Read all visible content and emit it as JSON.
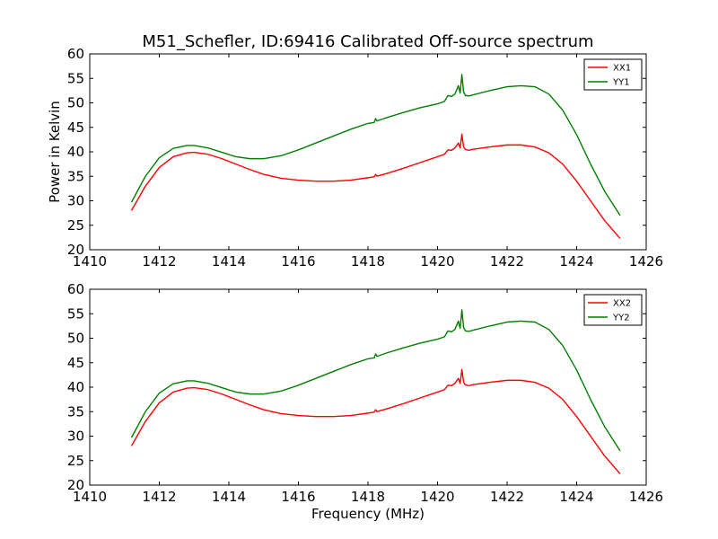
{
  "title": "M51_Schefler, ID:69416 Calibrated Off-source spectrum",
  "chart_data": [
    {
      "type": "line",
      "title": "M51_Schefler, ID:69416 Calibrated Off-source spectrum",
      "xlabel": "",
      "ylabel": "Power in Kelvin",
      "xlim": [
        1410,
        1426
      ],
      "ylim": [
        20,
        60
      ],
      "xticks": [
        "1410",
        "1412",
        "1414",
        "1416",
        "1418",
        "1420",
        "1422",
        "1424",
        "1426"
      ],
      "yticks": [
        "20",
        "25",
        "30",
        "35",
        "40",
        "45",
        "50",
        "55",
        "60"
      ],
      "legend": "top-right",
      "grid": false,
      "series": [
        {
          "name": "XX1",
          "color": "#ff0000",
          "x": [
            1411.2,
            1411.6,
            1412.0,
            1412.4,
            1412.8,
            1413.0,
            1413.4,
            1413.8,
            1414.2,
            1414.6,
            1415.0,
            1415.5,
            1416.0,
            1416.5,
            1417.0,
            1417.5,
            1418.0,
            1418.18,
            1418.22,
            1418.26,
            1418.3,
            1418.5,
            1419.0,
            1419.5,
            1420.0,
            1420.2,
            1420.3,
            1420.4,
            1420.5,
            1420.6,
            1420.65,
            1420.7,
            1420.75,
            1420.8,
            1420.9,
            1421.0,
            1421.5,
            1422.0,
            1422.4,
            1422.8,
            1423.2,
            1423.6,
            1424.0,
            1424.4,
            1424.8,
            1425.25
          ],
          "y": [
            28.0,
            33.0,
            36.8,
            39.0,
            39.8,
            39.9,
            39.5,
            38.6,
            37.5,
            36.4,
            35.4,
            34.6,
            34.2,
            34.0,
            34.0,
            34.2,
            34.7,
            34.9,
            35.4,
            35.0,
            35.1,
            35.5,
            36.6,
            37.8,
            39.0,
            39.5,
            40.4,
            40.3,
            40.8,
            41.8,
            40.8,
            43.6,
            41.0,
            40.5,
            40.3,
            40.5,
            41.0,
            41.4,
            41.4,
            41.0,
            39.8,
            37.5,
            34.0,
            30.0,
            26.0,
            22.3
          ]
        },
        {
          "name": "YY1",
          "color": "#007f00",
          "x": [
            1411.2,
            1411.6,
            1412.0,
            1412.4,
            1412.8,
            1413.0,
            1413.4,
            1413.8,
            1414.2,
            1414.6,
            1415.0,
            1415.5,
            1416.0,
            1416.5,
            1417.0,
            1417.5,
            1418.0,
            1418.18,
            1418.22,
            1418.26,
            1418.3,
            1418.5,
            1419.0,
            1419.5,
            1420.0,
            1420.2,
            1420.3,
            1420.4,
            1420.5,
            1420.6,
            1420.65,
            1420.7,
            1420.75,
            1420.8,
            1420.9,
            1421.0,
            1421.5,
            1422.0,
            1422.4,
            1422.8,
            1423.2,
            1423.6,
            1424.0,
            1424.4,
            1424.8,
            1425.25
          ],
          "y": [
            29.7,
            35.0,
            38.8,
            40.7,
            41.3,
            41.3,
            40.8,
            39.9,
            39.0,
            38.6,
            38.6,
            39.2,
            40.4,
            41.8,
            43.2,
            44.6,
            45.8,
            46.0,
            46.8,
            46.3,
            46.4,
            46.9,
            48.0,
            49.0,
            49.8,
            50.3,
            51.5,
            51.3,
            51.8,
            53.5,
            52.0,
            55.8,
            52.2,
            51.5,
            51.4,
            51.6,
            52.5,
            53.3,
            53.5,
            53.3,
            51.8,
            48.5,
            43.5,
            37.5,
            32.0,
            27.0
          ]
        }
      ]
    },
    {
      "type": "line",
      "title": "",
      "xlabel": "Frequency (MHz)",
      "ylabel": "",
      "xlim": [
        1410,
        1426
      ],
      "ylim": [
        20,
        60
      ],
      "xticks": [
        "1410",
        "1412",
        "1414",
        "1416",
        "1418",
        "1420",
        "1422",
        "1424",
        "1426"
      ],
      "yticks": [
        "20",
        "25",
        "30",
        "35",
        "40",
        "45",
        "50",
        "55",
        "60"
      ],
      "legend": "top-right",
      "grid": false,
      "series": [
        {
          "name": "XX2",
          "color": "#ff0000",
          "x": [
            1411.2,
            1411.6,
            1412.0,
            1412.4,
            1412.8,
            1413.0,
            1413.4,
            1413.8,
            1414.2,
            1414.6,
            1415.0,
            1415.5,
            1416.0,
            1416.5,
            1417.0,
            1417.5,
            1418.0,
            1418.18,
            1418.22,
            1418.26,
            1418.3,
            1418.5,
            1419.0,
            1419.5,
            1420.0,
            1420.2,
            1420.3,
            1420.4,
            1420.5,
            1420.6,
            1420.65,
            1420.7,
            1420.75,
            1420.8,
            1420.9,
            1421.0,
            1421.5,
            1422.0,
            1422.4,
            1422.8,
            1423.2,
            1423.6,
            1424.0,
            1424.4,
            1424.8,
            1425.25
          ],
          "y": [
            28.0,
            33.0,
            36.8,
            39.0,
            39.8,
            39.9,
            39.5,
            38.6,
            37.5,
            36.4,
            35.4,
            34.6,
            34.2,
            34.0,
            34.0,
            34.2,
            34.7,
            34.9,
            35.4,
            35.0,
            35.1,
            35.5,
            36.6,
            37.8,
            39.0,
            39.5,
            40.4,
            40.3,
            40.8,
            41.8,
            40.8,
            43.6,
            41.0,
            40.5,
            40.3,
            40.5,
            41.0,
            41.4,
            41.4,
            41.0,
            39.8,
            37.5,
            34.0,
            30.0,
            26.0,
            22.3
          ]
        },
        {
          "name": "YY2",
          "color": "#007f00",
          "x": [
            1411.2,
            1411.6,
            1412.0,
            1412.4,
            1412.8,
            1413.0,
            1413.4,
            1413.8,
            1414.2,
            1414.6,
            1415.0,
            1415.5,
            1416.0,
            1416.5,
            1417.0,
            1417.5,
            1418.0,
            1418.18,
            1418.22,
            1418.26,
            1418.3,
            1418.5,
            1419.0,
            1419.5,
            1420.0,
            1420.2,
            1420.3,
            1420.4,
            1420.5,
            1420.6,
            1420.65,
            1420.7,
            1420.75,
            1420.8,
            1420.9,
            1421.0,
            1421.5,
            1422.0,
            1422.4,
            1422.8,
            1423.2,
            1423.6,
            1424.0,
            1424.4,
            1424.8,
            1425.25
          ],
          "y": [
            29.7,
            35.0,
            38.8,
            40.7,
            41.3,
            41.3,
            40.8,
            39.9,
            39.0,
            38.6,
            38.6,
            39.2,
            40.4,
            41.8,
            43.2,
            44.6,
            45.8,
            46.0,
            46.8,
            46.3,
            46.4,
            46.9,
            48.0,
            49.0,
            49.8,
            50.3,
            51.5,
            51.3,
            51.8,
            53.5,
            52.0,
            55.8,
            52.2,
            51.5,
            51.4,
            51.6,
            52.5,
            53.3,
            53.5,
            53.3,
            51.8,
            48.5,
            43.5,
            37.5,
            32.0,
            27.0
          ]
        }
      ]
    }
  ]
}
